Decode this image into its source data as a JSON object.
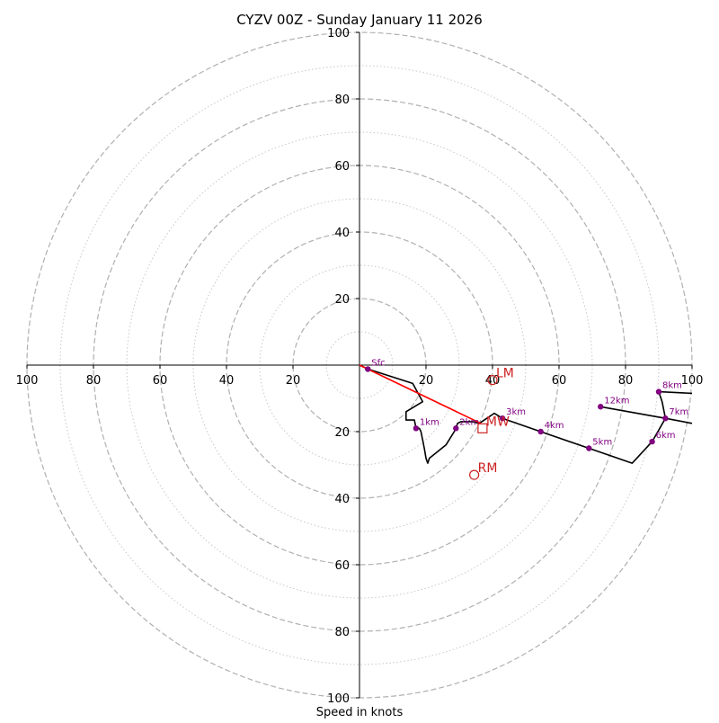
{
  "chart_data": {
    "type": "hodograph",
    "title": "CYZV 00Z - Sunday January 11 2026",
    "xlabel": "Speed in knots",
    "units": "knots",
    "range": 100,
    "ring_major": [
      20,
      40,
      60,
      80,
      100
    ],
    "ring_minor": [
      10,
      30,
      50,
      70,
      90
    ],
    "x_tick_labels": [
      "100",
      "80",
      "60",
      "40",
      "20",
      "20",
      "40",
      "60",
      "80",
      "100"
    ],
    "y_tick_labels": [
      "100",
      "80",
      "60",
      "40",
      "20",
      "20",
      "40",
      "60",
      "80",
      "100"
    ],
    "x_tick_values": [
      -100,
      -80,
      -60,
      -40,
      -20,
      20,
      40,
      60,
      80,
      100
    ],
    "y_tick_values": [
      100,
      80,
      60,
      40,
      20,
      -20,
      -40,
      -60,
      -80,
      -100
    ],
    "colors": {
      "grid_major": "#b0b0b0",
      "grid_minor": "#c8c8c8",
      "trace": "#000000",
      "height_point": "#800080",
      "bunkers_line": "#ff0000",
      "storm_motion": "#cc2222"
    },
    "wind_trace": [
      {
        "u": 0,
        "v": 0
      },
      {
        "u": 2.5,
        "v": -1.2
      },
      {
        "u": 16,
        "v": -5.5
      },
      {
        "u": 19,
        "v": -11
      },
      {
        "u": 14,
        "v": -14
      },
      {
        "u": 14,
        "v": -16.5
      },
      {
        "u": 16.5,
        "v": -16.5
      },
      {
        "u": 17,
        "v": -19
      },
      {
        "u": 18,
        "v": -19
      },
      {
        "u": 18.5,
        "v": -20
      },
      {
        "u": 19.5,
        "v": -25
      },
      {
        "u": 20,
        "v": -28
      },
      {
        "u": 20.5,
        "v": -29.5
      },
      {
        "u": 21,
        "v": -28
      },
      {
        "u": 26,
        "v": -24
      },
      {
        "u": 28.5,
        "v": -20
      },
      {
        "u": 29,
        "v": -19
      },
      {
        "u": 29.5,
        "v": -17.5
      },
      {
        "u": 30.5,
        "v": -17
      },
      {
        "u": 34,
        "v": -17
      },
      {
        "u": 36,
        "v": -17.5
      },
      {
        "u": 39,
        "v": -15.5
      },
      {
        "u": 40.5,
        "v": -14.5
      },
      {
        "u": 43,
        "v": -16
      },
      {
        "u": 54.5,
        "v": -20
      },
      {
        "u": 69,
        "v": -25
      },
      {
        "u": 82,
        "v": -29.5
      },
      {
        "u": 88,
        "v": -23
      },
      {
        "u": 92,
        "v": -16
      },
      {
        "u": 100,
        "v": -17.5
      }
    ],
    "upper_segment": [
      {
        "u": 72.5,
        "v": -12.5
      },
      {
        "u": 92,
        "v": -16
      },
      {
        "u": 91,
        "v": -11
      },
      {
        "u": 90,
        "v": -8
      },
      {
        "u": 100,
        "v": -8.5
      }
    ],
    "height_points": [
      {
        "label": "Sfc",
        "u": 2.5,
        "v": -1.2
      },
      {
        "label": "1km",
        "u": 17,
        "v": -19
      },
      {
        "label": "2km",
        "u": 29,
        "v": -19
      },
      {
        "label": "3km",
        "u": 43,
        "v": -16
      },
      {
        "label": "4km",
        "u": 54.5,
        "v": -20
      },
      {
        "label": "5km",
        "u": 69,
        "v": -25
      },
      {
        "label": "6km",
        "u": 88,
        "v": -23
      },
      {
        "label": "7km",
        "u": 92,
        "v": -16
      },
      {
        "label": "8km",
        "u": 90,
        "v": -8
      },
      {
        "label": "12km",
        "u": 72.5,
        "v": -12.5
      }
    ],
    "storm_motions": [
      {
        "label": "LM",
        "u": 40,
        "v": -4.5,
        "marker": "circle"
      },
      {
        "label": "MW",
        "u": 37,
        "v": -19,
        "marker": "square"
      },
      {
        "label": "RM",
        "u": 34.5,
        "v": -33,
        "marker": "circle"
      }
    ],
    "bunkers_line": [
      {
        "u": 0,
        "v": 0
      },
      {
        "u": 36.5,
        "v": -17.5
      }
    ]
  }
}
